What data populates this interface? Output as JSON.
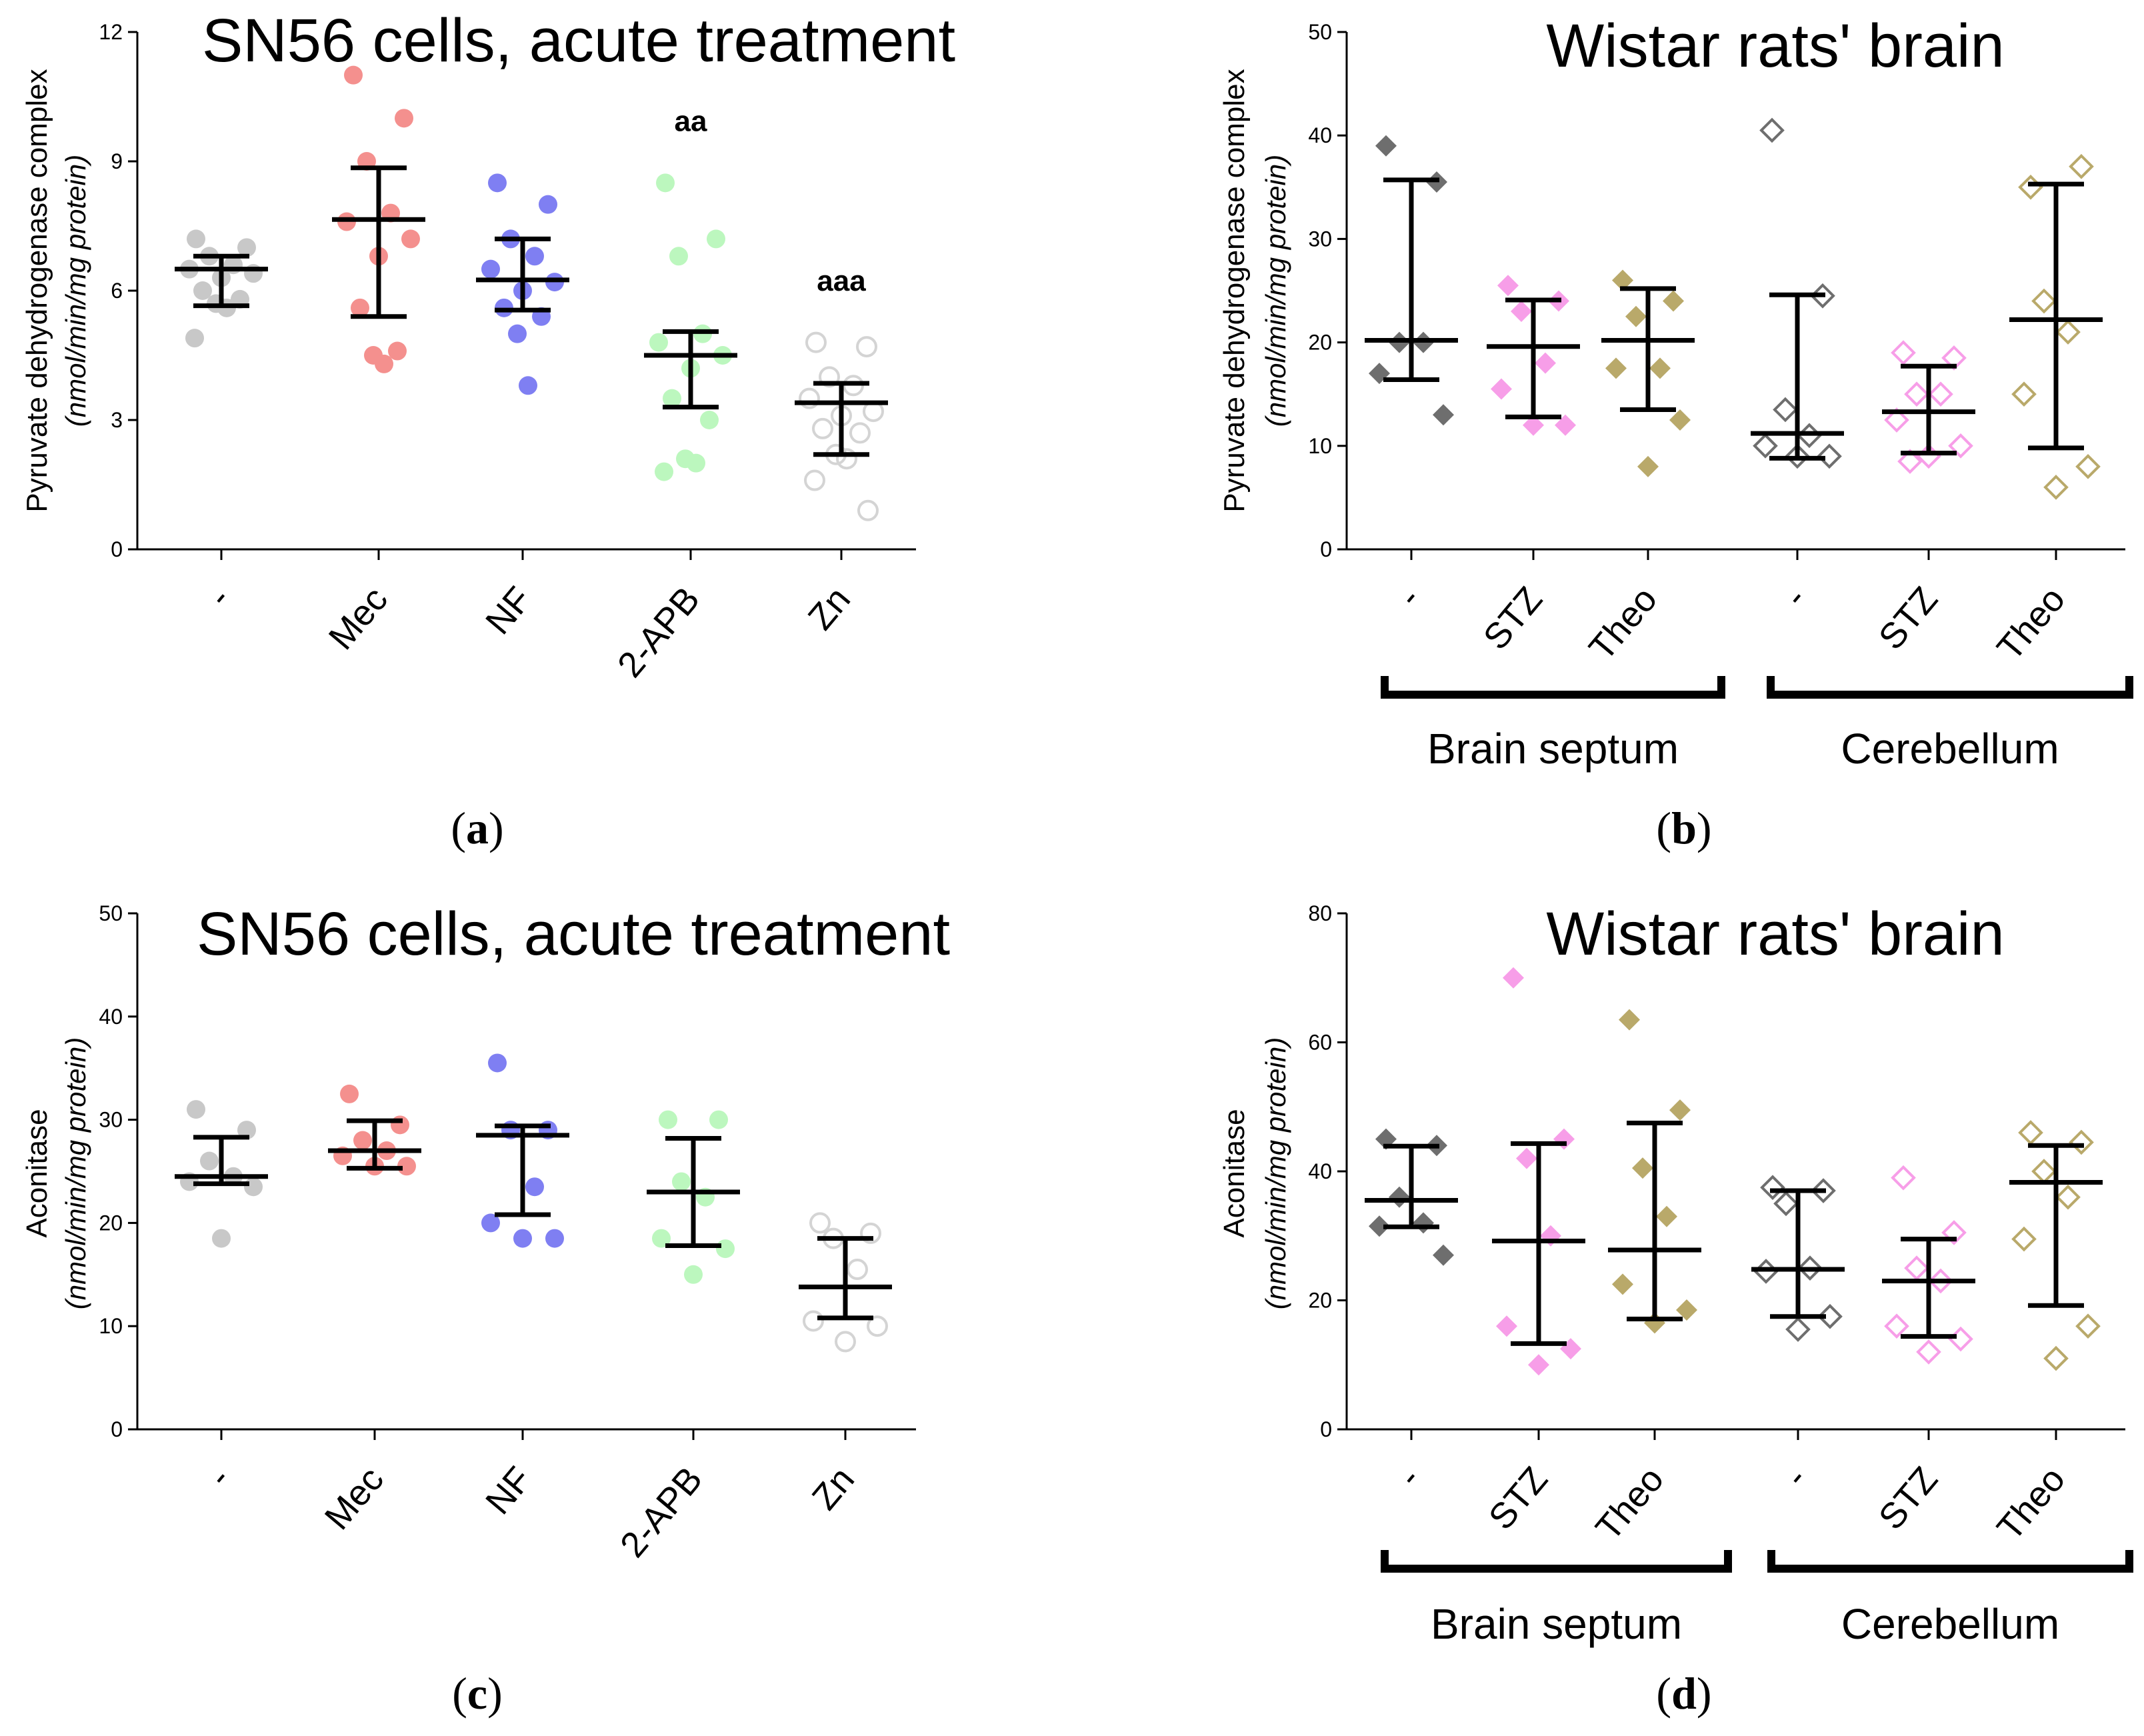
{
  "chart_data": [
    {
      "panel": "a",
      "type": "scatter",
      "title": "SN56 cells, acute treatment",
      "ylabel": "Pyruvate dehydrogenase complex",
      "ylabel_units": "(nmol/min/mg protein)",
      "ylim": [
        0,
        12
      ],
      "yticks": [
        0,
        3,
        6,
        9,
        12
      ],
      "categories": [
        "-",
        "Mec",
        "NF",
        "2-APB",
        "Zn"
      ],
      "colors": [
        "#c8c8c8",
        "#f4908e",
        "#7f7ff2",
        "#bcf7be",
        "#d4d4d4"
      ],
      "marker": "circle",
      "fill": [
        true,
        true,
        true,
        true,
        false
      ],
      "points": [
        [
          7.2,
          7.0,
          6.8,
          6.6,
          6.5,
          6.4,
          6.3,
          6.0,
          5.8,
          5.7,
          5.6,
          4.9
        ],
        [
          11.0,
          10.0,
          9.0,
          7.8,
          7.6,
          7.2,
          6.8,
          5.6,
          4.6,
          4.5,
          4.3
        ],
        [
          8.5,
          8.0,
          7.2,
          6.8,
          6.5,
          6.2,
          6.0,
          5.6,
          5.4,
          5.0,
          3.8
        ],
        [
          8.5,
          7.2,
          6.8,
          5.0,
          4.8,
          4.5,
          4.2,
          3.5,
          3.0,
          2.1,
          2.0,
          1.8
        ],
        [
          4.8,
          4.7,
          4.0,
          3.8,
          3.5,
          3.2,
          3.1,
          2.8,
          2.7,
          2.2,
          2.1,
          1.6,
          0.9
        ]
      ],
      "central": [
        6.5,
        7.65,
        6.25,
        4.5,
        3.4
      ],
      "err_upper": [
        6.8,
        8.85,
        7.2,
        5.05,
        3.85
      ],
      "err_lower": [
        5.65,
        5.4,
        5.55,
        3.3,
        2.2
      ],
      "annotations": [
        "",
        "",
        "",
        "aa",
        "aaa"
      ],
      "annot_y": [
        0,
        0,
        0,
        9.7,
        6.0
      ]
    },
    {
      "panel": "b",
      "type": "scatter",
      "title": "Wistar rats' brain",
      "ylabel": "Pyruvate dehydrogenase complex",
      "ylabel_units": "(nmol/min/mg protein)",
      "ylim": [
        0,
        50
      ],
      "yticks": [
        0,
        10,
        20,
        30,
        40,
        50
      ],
      "categories": [
        "-",
        "STZ",
        "Theo",
        "-",
        "STZ",
        "Theo"
      ],
      "colors": [
        "#6e6e6e",
        "#f79ee8",
        "#b9a96a",
        "#6e6e6e",
        "#f79ee8",
        "#b9a96a"
      ],
      "marker": "diamond",
      "fill": [
        true,
        true,
        true,
        false,
        false,
        false
      ],
      "points": [
        [
          39.0,
          35.5,
          20.0,
          20.0,
          17.0,
          13.0
        ],
        [
          25.5,
          24.0,
          23.0,
          18.0,
          15.5,
          12.0,
          12.0
        ],
        [
          26.0,
          24.0,
          22.5,
          17.5,
          17.5,
          12.5,
          8.0
        ],
        [
          40.5,
          24.5,
          13.5,
          11.0,
          10.0,
          9.0,
          9.0
        ],
        [
          19.0,
          18.5,
          15.0,
          15.0,
          12.5,
          10.0,
          9.0,
          8.5
        ],
        [
          35.0,
          37.0,
          24.0,
          21.0,
          15.0,
          8.0,
          6.0
        ]
      ],
      "central": [
        20.2,
        19.6,
        20.2,
        11.2,
        13.3,
        22.2
      ],
      "err_upper": [
        35.7,
        24.1,
        25.2,
        24.6,
        17.7,
        35.3
      ],
      "err_lower": [
        16.4,
        12.8,
        13.5,
        8.8,
        9.3,
        9.8
      ],
      "groups": [
        {
          "label": "Brain septum",
          "from": 0,
          "to": 2
        },
        {
          "label": "Cerebellum",
          "from": 3,
          "to": 5
        }
      ]
    },
    {
      "panel": "c",
      "type": "scatter",
      "title": "SN56 cells, acute treatment",
      "ylabel": "Aconitase",
      "ylabel_units": "(nmol/min/mg protein)",
      "ylim": [
        0,
        50
      ],
      "yticks": [
        0,
        10,
        20,
        30,
        40,
        50
      ],
      "categories": [
        "-",
        "Mec",
        "NF",
        "2-APB",
        "Zn"
      ],
      "colors": [
        "#c8c8c8",
        "#f4908e",
        "#7f7ff2",
        "#bcf7be",
        "#d4d4d4"
      ],
      "marker": "circle",
      "fill": [
        true,
        true,
        true,
        true,
        false
      ],
      "points": [
        [
          31.0,
          29.0,
          26.0,
          24.5,
          24.0,
          23.5,
          18.5
        ],
        [
          32.5,
          29.5,
          28.0,
          27.0,
          26.5,
          25.5,
          25.5
        ],
        [
          35.5,
          29.0,
          29.0,
          23.5,
          20.0,
          18.5,
          18.5
        ],
        [
          30.0,
          30.0,
          24.0,
          22.5,
          18.5,
          17.5,
          15.0
        ],
        [
          20.0,
          19.0,
          18.5,
          15.5,
          10.5,
          10.0,
          8.5
        ]
      ],
      "central": [
        24.5,
        27.0,
        28.5,
        23.0,
        13.8
      ],
      "err_upper": [
        28.3,
        29.9,
        29.4,
        28.2,
        18.5
      ],
      "err_lower": [
        23.8,
        25.3,
        20.8,
        17.8,
        10.8
      ]
    },
    {
      "panel": "d",
      "type": "scatter",
      "title": "Wistar rats' brain",
      "ylabel": "Aconitase",
      "ylabel_units": "(nmol/min/mg protein)",
      "ylim": [
        0,
        80
      ],
      "yticks": [
        0,
        20,
        40,
        60,
        80
      ],
      "categories": [
        "-",
        "STZ",
        "Theo",
        "-",
        "STZ",
        "Theo"
      ],
      "colors": [
        "#6e6e6e",
        "#f79ee8",
        "#b9a96a",
        "#6e6e6e",
        "#f79ee8",
        "#b9a96a"
      ],
      "marker": "diamond",
      "fill": [
        true,
        true,
        true,
        false,
        false,
        false
      ],
      "points": [
        [
          45.0,
          44.0,
          36.0,
          32.0,
          31.5,
          27.0
        ],
        [
          70.0,
          45.0,
          42.0,
          30.0,
          16.0,
          12.5,
          10.0
        ],
        [
          63.5,
          49.5,
          40.5,
          33.0,
          22.5,
          18.5,
          16.5
        ],
        [
          37.5,
          37.0,
          35.0,
          25.0,
          24.5,
          17.5,
          15.5
        ],
        [
          39.0,
          30.5,
          25.0,
          23.0,
          16.0,
          14.0,
          12.0
        ],
        [
          46.0,
          44.5,
          40.0,
          36.0,
          29.5,
          16.0,
          11.0
        ]
      ],
      "central": [
        35.5,
        29.2,
        27.8,
        24.8,
        23.0,
        38.3
      ],
      "err_upper": [
        43.9,
        44.3,
        47.5,
        37.0,
        29.5,
        44.0
      ],
      "err_lower": [
        31.4,
        13.3,
        17.1,
        17.5,
        14.4,
        19.2
      ],
      "groups": [
        {
          "label": "Brain septum",
          "from": 0,
          "to": 2
        },
        {
          "label": "Cerebellum",
          "from": 3,
          "to": 5
        }
      ]
    }
  ],
  "panel_labels": [
    {
      "open": "(",
      "letter": "a",
      "close": ")"
    },
    {
      "open": "(",
      "letter": "b",
      "close": ")"
    },
    {
      "open": "(",
      "letter": "c",
      "close": ")"
    },
    {
      "open": "(",
      "letter": "d",
      "close": ")"
    }
  ]
}
